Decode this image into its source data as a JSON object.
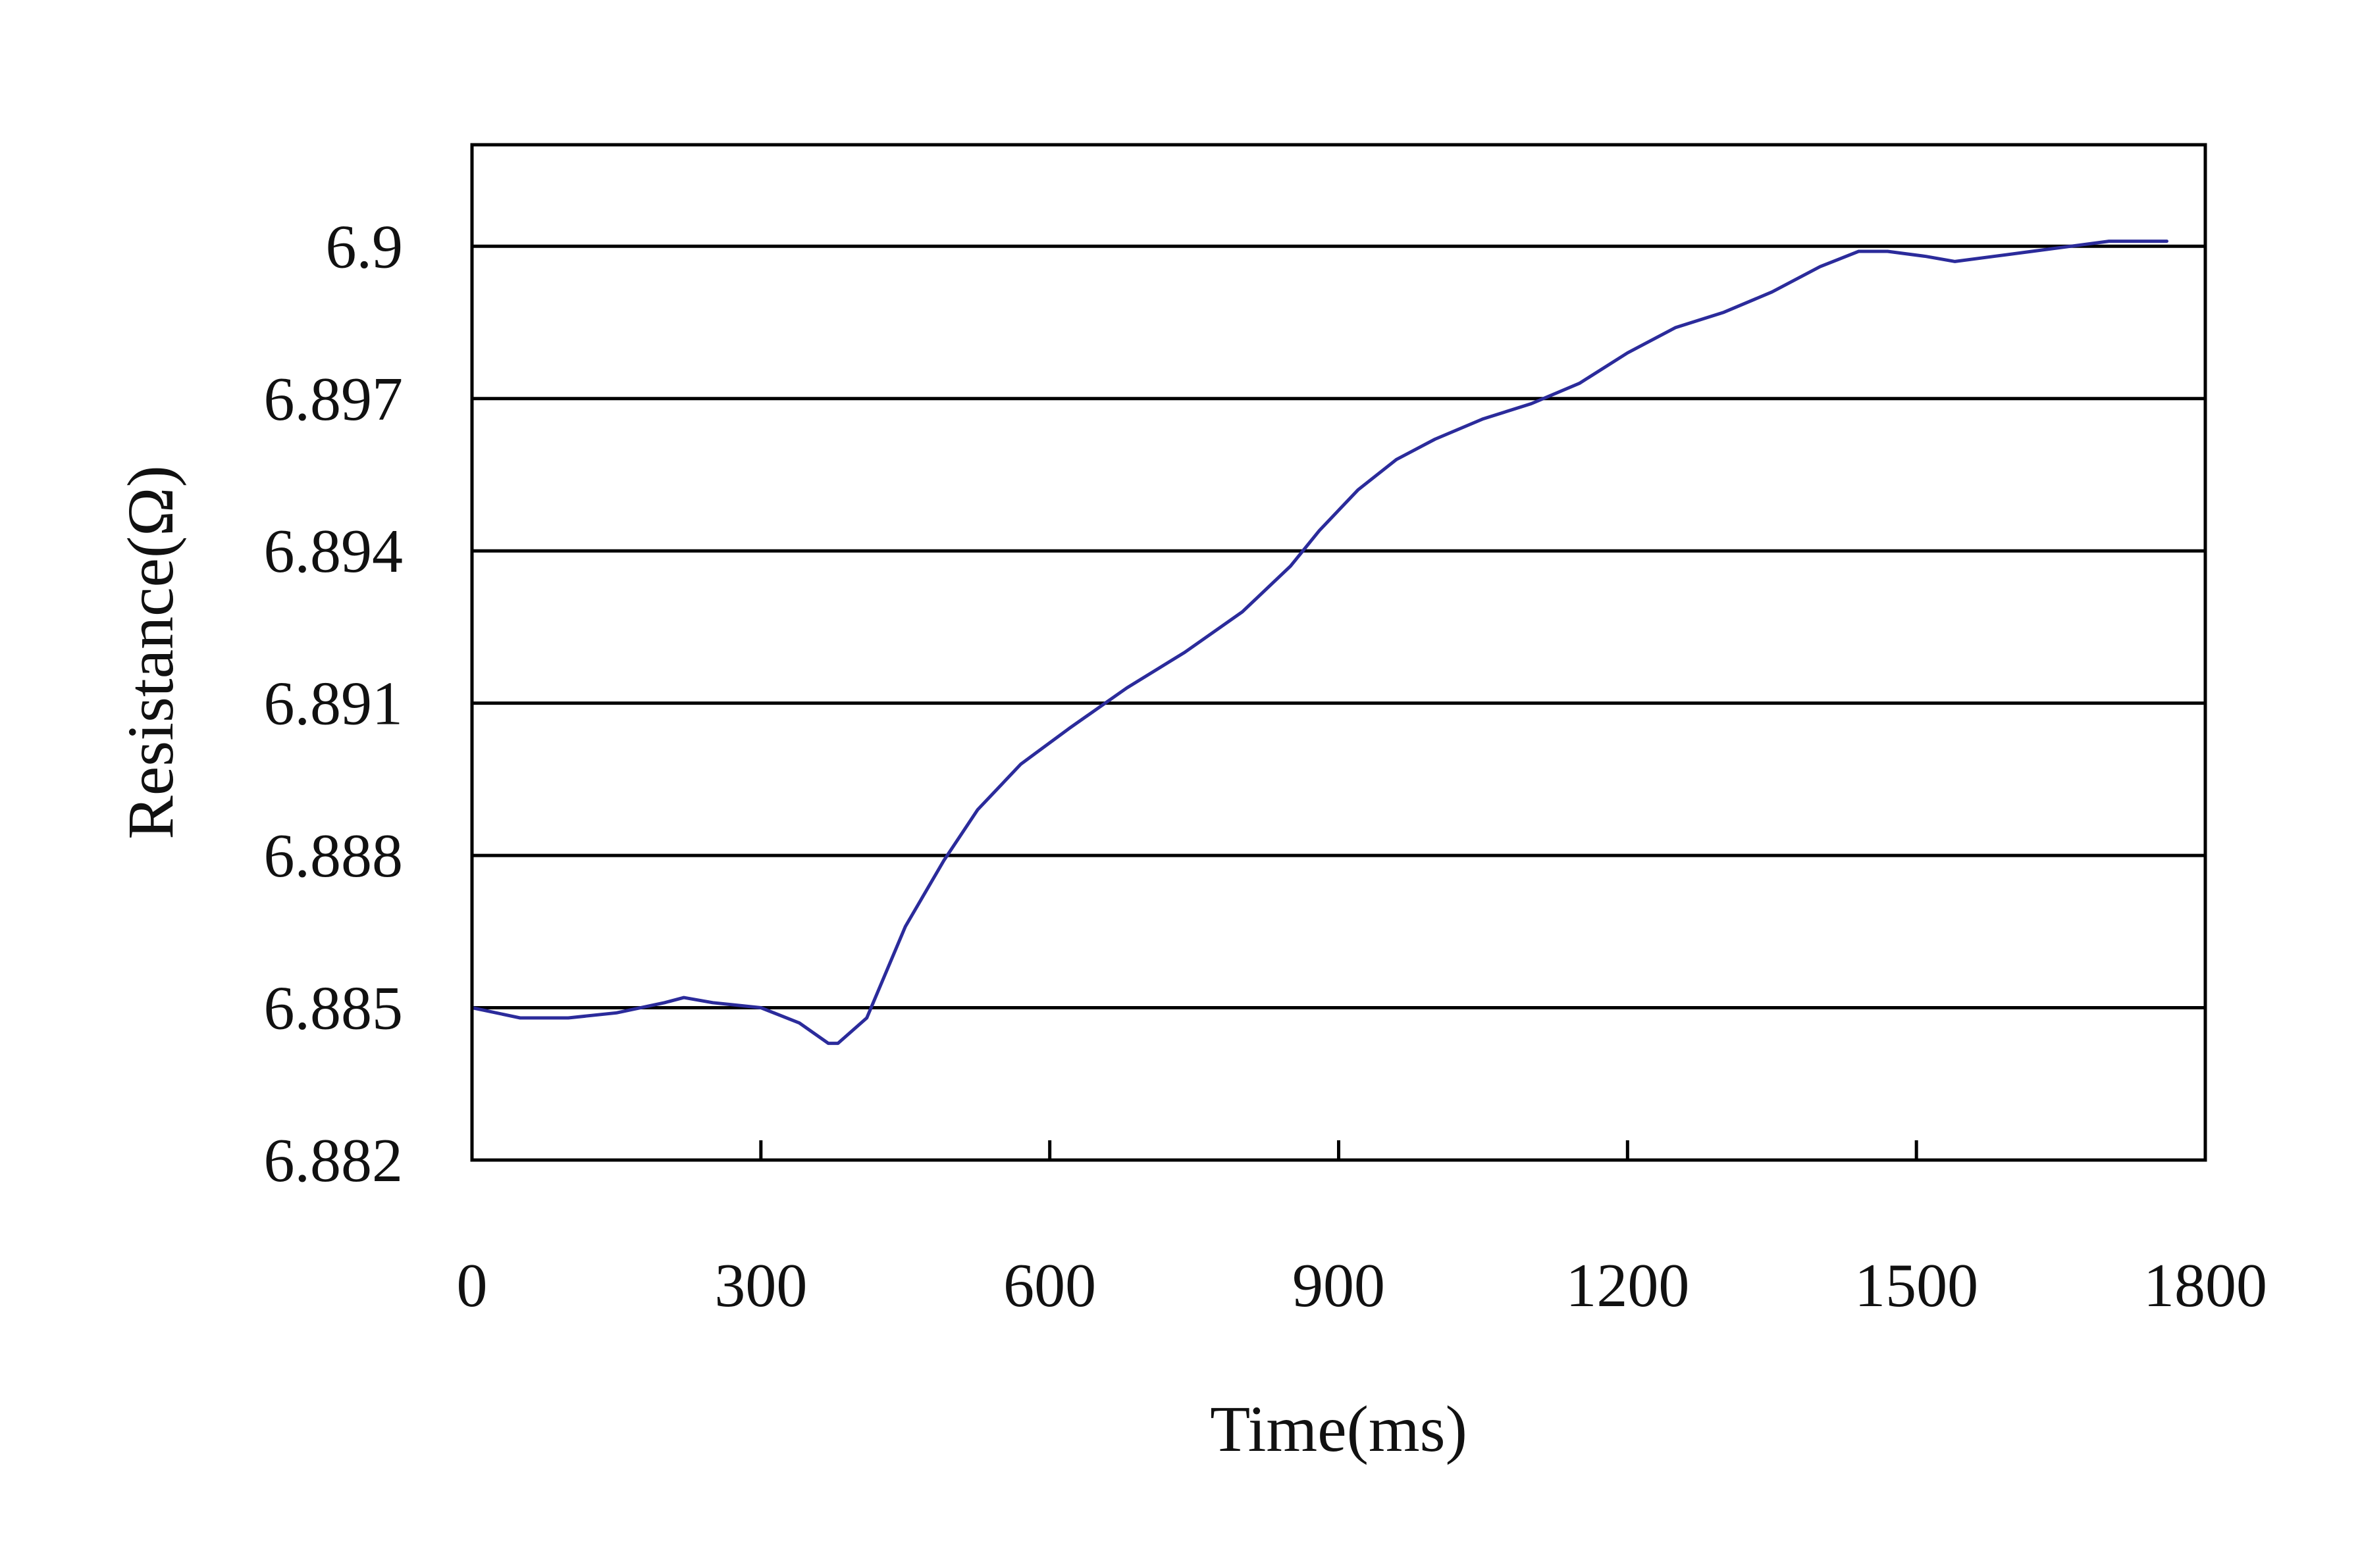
{
  "chart_data": {
    "type": "line",
    "title": "",
    "xlabel": "Time(ms)",
    "ylabel": "Resistance(Ω)",
    "xlim": [
      0,
      1800
    ],
    "ylim": [
      6.882,
      6.902
    ],
    "x_ticks": [
      0,
      300,
      600,
      900,
      1200,
      1500,
      1800
    ],
    "x_tick_labels": [
      "0",
      "300",
      "600",
      "900",
      "1200",
      "1500",
      "1800"
    ],
    "y_ticks": [
      6.882,
      6.885,
      6.888,
      6.891,
      6.894,
      6.897,
      6.9
    ],
    "y_tick_labels": [
      "6.882",
      "6.885",
      "6.888",
      "6.891",
      "6.894",
      "6.897",
      "6.9"
    ],
    "grid": "horizontal",
    "legend": "none",
    "series": [
      {
        "color": "#2b2b9b",
        "x": [
          0,
          50,
          100,
          150,
          200,
          220,
          250,
          300,
          340,
          370,
          380,
          410,
          450,
          490,
          525,
          570,
          620,
          680,
          740,
          800,
          850,
          880,
          920,
          960,
          1000,
          1050,
          1100,
          1150,
          1200,
          1250,
          1300,
          1350,
          1400,
          1440,
          1470,
          1510,
          1540,
          1580,
          1620,
          1660,
          1700,
          1730,
          1760
        ],
        "y": [
          6.885,
          6.8848,
          6.8848,
          6.8849,
          6.8851,
          6.8852,
          6.8851,
          6.885,
          6.8847,
          6.8843,
          6.8843,
          6.8848,
          6.8866,
          6.8879,
          6.8889,
          6.8898,
          6.8905,
          6.8913,
          6.892,
          6.8928,
          6.8937,
          6.8944,
          6.8952,
          6.8958,
          6.8962,
          6.8966,
          6.8969,
          6.8973,
          6.8979,
          6.8984,
          6.8987,
          6.8991,
          6.8996,
          6.8999,
          6.8999,
          6.8998,
          6.8997,
          6.8998,
          6.8999,
          6.9,
          6.9001,
          6.9001,
          6.9001
        ]
      }
    ]
  }
}
